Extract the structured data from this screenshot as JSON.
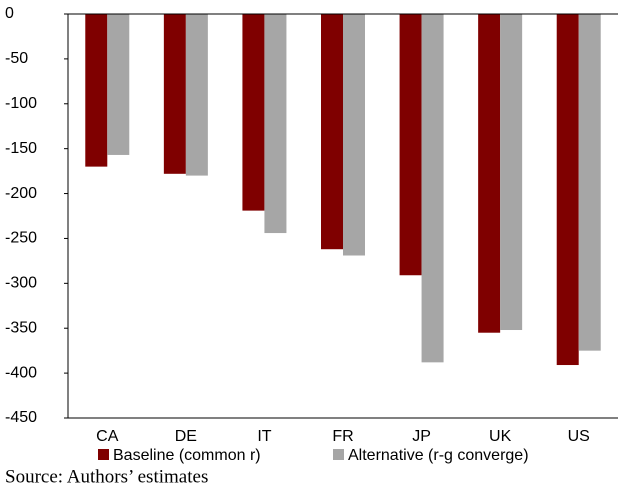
{
  "chart_data": {
    "type": "bar",
    "categories": [
      "CA",
      "DE",
      "IT",
      "FR",
      "JP",
      "UK",
      "US"
    ],
    "series": [
      {
        "name": "Baseline (common r)",
        "color": "#7f0000",
        "values": [
          -170,
          -178,
          -219,
          -262,
          -291,
          -355,
          -391
        ]
      },
      {
        "name": "Alternative (r-g converge)",
        "color": "#a6a6a6",
        "values": [
          -157,
          -180,
          -244,
          -269,
          -388,
          -352,
          -375
        ]
      }
    ],
    "ylim": [
      -450,
      0
    ],
    "yticks": [
      0,
      -50,
      -100,
      -150,
      -200,
      -250,
      -300,
      -350,
      -400,
      -450
    ],
    "source": "Source: Authors’ estimates"
  }
}
